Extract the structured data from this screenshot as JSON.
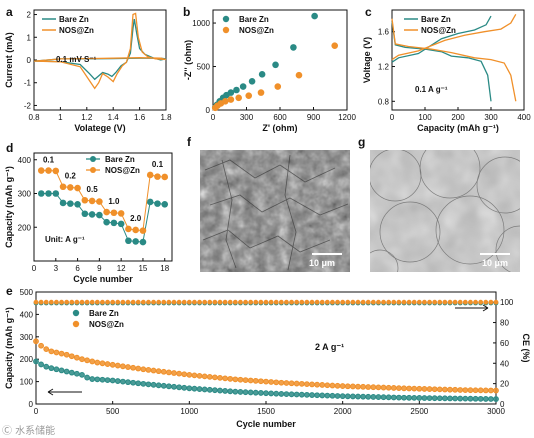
{
  "colors": {
    "bare": "#2a8a85",
    "nos": "#f0902a",
    "axis": "#111111"
  },
  "chart_data": [
    {
      "panel": "a",
      "type": "line",
      "xlabel": "Volatege (V)",
      "ylabel": "Current (mA)",
      "xlim": [
        0.8,
        1.8
      ],
      "ylim": [
        -2.2,
        2.2
      ],
      "xticks": [
        0.8,
        1.0,
        1.2,
        1.4,
        1.6,
        1.8
      ],
      "yticks": [
        -2,
        -1,
        0,
        1,
        2
      ],
      "annotation": "0.1 mV S⁻¹",
      "legend": [
        "Bare Zn",
        "NOS@Zn"
      ],
      "series": [
        {
          "name": "Bare Zn",
          "x": [
            0.8,
            1.0,
            1.15,
            1.22,
            1.26,
            1.28,
            1.32,
            1.36,
            1.39,
            1.42,
            1.46,
            1.5,
            1.53,
            1.55,
            1.56,
            1.58,
            1.6,
            1.64,
            1.7,
            1.76,
            1.8,
            1.76,
            1.6,
            1.4,
            1.2,
            1.0,
            0.8
          ],
          "y": [
            -0.05,
            -0.07,
            -0.2,
            -0.6,
            -0.85,
            -0.75,
            -0.55,
            -0.62,
            -0.72,
            -0.55,
            -0.25,
            -0.1,
            0.3,
            1.4,
            1.8,
            1.1,
            0.5,
            0.25,
            0.1,
            0.0,
            0.05,
            0.08,
            0.08,
            0.06,
            0.05,
            0.05,
            -0.05
          ]
        },
        {
          "name": "NOS@Zn",
          "x": [
            0.8,
            1.0,
            1.15,
            1.22,
            1.26,
            1.29,
            1.32,
            1.36,
            1.4,
            1.43,
            1.47,
            1.5,
            1.53,
            1.55,
            1.57,
            1.59,
            1.62,
            1.66,
            1.72,
            1.8,
            1.76,
            1.6,
            1.4,
            1.2,
            1.0,
            0.8
          ],
          "y": [
            -0.05,
            -0.08,
            -0.3,
            -0.9,
            -1.25,
            -1.0,
            -0.6,
            -0.75,
            -0.95,
            -0.6,
            -0.25,
            -0.1,
            0.5,
            2.0,
            2.05,
            1.0,
            0.35,
            0.15,
            0.05,
            0.02,
            0.08,
            0.1,
            0.08,
            0.06,
            0.05,
            -0.05
          ]
        }
      ]
    },
    {
      "panel": "b",
      "type": "scatter",
      "xlabel": "Z' (ohm)",
      "ylabel": "-Z'' (ohm)",
      "xlim": [
        0,
        1200
      ],
      "ylim": [
        0,
        1150
      ],
      "xticks": [
        0,
        300,
        600,
        900,
        1200
      ],
      "yticks": [
        0,
        500,
        1000
      ],
      "legend": [
        "Bare Zn",
        "NOS@Zn"
      ],
      "series": [
        {
          "name": "Bare Zn",
          "x": [
            20,
            35,
            60,
            90,
            120,
            160,
            210,
            270,
            350,
            440,
            560,
            720,
            910
          ],
          "y": [
            30,
            60,
            100,
            140,
            170,
            200,
            230,
            270,
            330,
            410,
            520,
            720,
            1080
          ]
        },
        {
          "name": "NOS@Zn",
          "x": [
            20,
            40,
            70,
            110,
            160,
            230,
            320,
            430,
            580,
            770,
            1090
          ],
          "y": [
            25,
            50,
            75,
            100,
            120,
            140,
            165,
            200,
            270,
            400,
            740
          ]
        }
      ]
    },
    {
      "panel": "c",
      "type": "line",
      "xlabel": "Capacity (mAh g⁻¹)",
      "ylabel": "Voltage (V)",
      "xlim": [
        0,
        400
      ],
      "ylim": [
        0.7,
        1.85
      ],
      "xticks": [
        0,
        100,
        200,
        300,
        400
      ],
      "yticks": [
        0.8,
        1.2,
        1.6
      ],
      "annotation": "0.1 A g⁻¹",
      "legend": [
        "Bare Zn",
        "NOS@Zn"
      ],
      "series": [
        {
          "name": "Bare Zn (discharge)",
          "x": [
            0,
            10,
            40,
            100,
            150,
            180,
            230,
            270,
            290,
            300
          ],
          "y": [
            1.72,
            1.45,
            1.42,
            1.4,
            1.37,
            1.32,
            1.3,
            1.26,
            1.1,
            0.8
          ]
        },
        {
          "name": "Bare Zn (charge)",
          "x": [
            0,
            20,
            80,
            150,
            200,
            250,
            285,
            300
          ],
          "y": [
            1.25,
            1.3,
            1.35,
            1.52,
            1.58,
            1.62,
            1.68,
            1.78
          ]
        },
        {
          "name": "NOS@Zn (discharge)",
          "x": [
            0,
            10,
            50,
            120,
            180,
            250,
            300,
            340,
            360,
            375
          ],
          "y": [
            1.75,
            1.46,
            1.43,
            1.4,
            1.36,
            1.3,
            1.28,
            1.24,
            1.1,
            0.8
          ]
        },
        {
          "name": "NOS@Zn (charge)",
          "x": [
            0,
            20,
            80,
            160,
            220,
            280,
            330,
            360,
            375
          ],
          "y": [
            1.28,
            1.33,
            1.38,
            1.5,
            1.56,
            1.6,
            1.63,
            1.7,
            1.8
          ]
        }
      ]
    },
    {
      "panel": "d",
      "type": "line",
      "xlabel": "Cycle number",
      "ylabel": "Capacity (mAh g⁻¹)",
      "xlim": [
        0,
        19
      ],
      "ylim": [
        100,
        420
      ],
      "xticks": [
        0,
        3,
        6,
        9,
        12,
        15,
        18
      ],
      "yticks": [
        200,
        300,
        400
      ],
      "annotation": "Unit: A g⁻¹",
      "rate_labels": [
        "0.1",
        "0.2",
        "0.5",
        "1.0",
        "2.0",
        "0.1"
      ],
      "legend": [
        "Bare Zn",
        "NOS@Zn"
      ],
      "series": [
        {
          "name": "Bare Zn",
          "x": [
            1,
            2,
            3,
            4,
            5,
            6,
            7,
            8,
            9,
            10,
            11,
            12,
            13,
            14,
            15,
            16,
            17,
            18
          ],
          "y": [
            300,
            300,
            300,
            272,
            270,
            268,
            240,
            238,
            236,
            215,
            213,
            210,
            160,
            158,
            156,
            275,
            270,
            268
          ]
        },
        {
          "name": "NOS@Zn",
          "x": [
            1,
            2,
            3,
            4,
            5,
            6,
            7,
            8,
            9,
            10,
            11,
            12,
            13,
            14,
            15,
            16,
            17,
            18
          ],
          "y": [
            368,
            368,
            367,
            320,
            318,
            316,
            280,
            278,
            276,
            245,
            243,
            241,
            195,
            192,
            190,
            355,
            350,
            349
          ]
        }
      ]
    },
    {
      "panel": "e",
      "type": "line",
      "xlabel": "Cycle number",
      "ylabel": "Capacity (mAh g⁻¹)",
      "ylabel2": "CE (%)",
      "xlim": [
        0,
        3000
      ],
      "ylim": [
        0,
        500
      ],
      "ylim2": [
        0,
        110
      ],
      "xticks": [
        0,
        500,
        1000,
        1500,
        2000,
        2500,
        3000
      ],
      "yticks": [
        0,
        100,
        200,
        300,
        400,
        500
      ],
      "yticks2": [
        0,
        20,
        40,
        60,
        80,
        100
      ],
      "annotation": "2 A g⁻¹",
      "legend": [
        "Bare Zn",
        "NOS@Zn"
      ],
      "series": [
        {
          "name": "NOS@Zn capacity",
          "x": [
            0,
            50,
            100,
            200,
            300,
            400,
            500,
            700,
            1000,
            1300,
            1600,
            2000,
            2400,
            2800,
            3000
          ],
          "y": [
            280,
            250,
            235,
            220,
            200,
            185,
            175,
            155,
            130,
            110,
            95,
            80,
            70,
            62,
            60
          ]
        },
        {
          "name": "Bare Zn capacity",
          "x": [
            0,
            50,
            100,
            200,
            300,
            350,
            400,
            500,
            700,
            1000,
            1300,
            1600,
            2000,
            2400,
            2800,
            3000
          ],
          "y": [
            190,
            170,
            160,
            145,
            130,
            112,
            110,
            105,
            90,
            70,
            55,
            45,
            35,
            28,
            24,
            22
          ]
        },
        {
          "name": "Bare Zn CE",
          "x": [
            0,
            3000
          ],
          "y": [
            100,
            100
          ]
        },
        {
          "name": "NOS@Zn CE",
          "x": [
            0,
            3000
          ],
          "y": [
            100,
            100
          ]
        }
      ]
    }
  ],
  "panels": {
    "a": {
      "label": "a"
    },
    "b": {
      "label": "b"
    },
    "c": {
      "label": "c"
    },
    "d": {
      "label": "d"
    },
    "e": {
      "label": "e"
    },
    "f": {
      "label": "f",
      "scale": "10 μm"
    },
    "g": {
      "label": "g",
      "scale": "10 μm"
    }
  },
  "watermark": "Ⓒ 水系储能"
}
